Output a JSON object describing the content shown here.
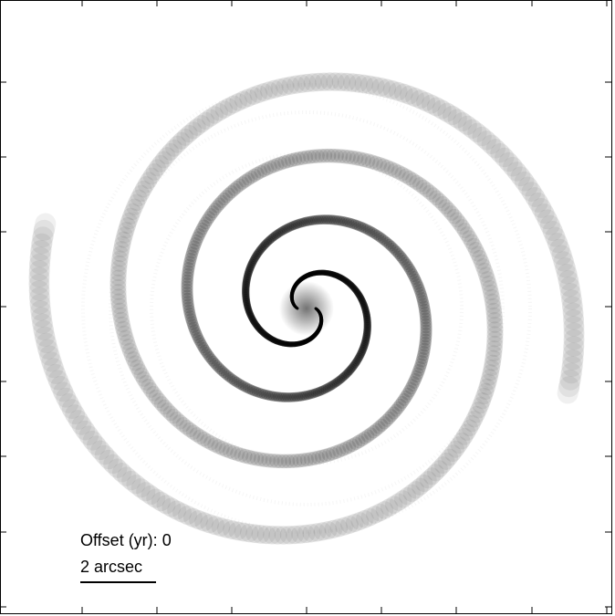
{
  "offset": {
    "label": "Offset (yr):",
    "value": "0"
  },
  "scalebar": {
    "label": "2 arcsec"
  },
  "colors": {
    "background": "#ffffff",
    "ink": "#000000"
  }
}
